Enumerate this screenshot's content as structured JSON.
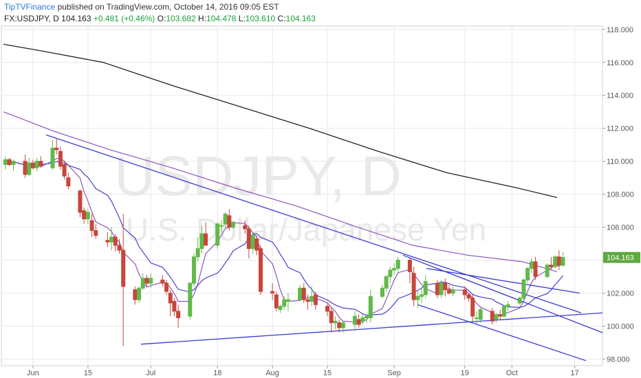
{
  "header": {
    "brand": "TipTVFinance",
    "published_text": " published on TradingView.com, October 14, 2016 09:05 EST"
  },
  "ohlc_bar": {
    "symbol": "FX:USDJPY, D",
    "last": "104.163",
    "change": "+0.481 (+0.46%)",
    "o_label": "O:",
    "o": "103.682",
    "h_label": "H:",
    "h": "104.478",
    "l_label": "L:",
    "l": "103.610",
    "c_label": "C:",
    "c": "104.163"
  },
  "watermark": {
    "line1": "USDJPY, D",
    "line2": "U.S. Dollar/Japanese Yen"
  },
  "colors": {
    "up": "#62b94a",
    "down": "#c7463c",
    "ma_long": "#222222",
    "ma_purple": "#8e55b8",
    "trendline": "#3a3ad4",
    "grid": "#e8e8e8",
    "badge": "#5fa83f"
  },
  "chart_data": {
    "type": "candlestick",
    "ylim": [
      97.6,
      118.2
    ],
    "y_ticks": [
      "98.000",
      "100.000",
      "102.000",
      "104.000",
      "106.000",
      "108.000",
      "110.000",
      "112.000",
      "114.000",
      "116.000",
      "118.000"
    ],
    "x_ticks": [
      "Jun",
      "15",
      "Jul",
      "18",
      "Aug",
      "15",
      "Sep",
      "19",
      "Oct",
      "17"
    ],
    "current_price": "104.163",
    "candles": [
      {
        "date": "2016-05-25",
        "o": 109.8,
        "h": 110.3,
        "l": 109.5,
        "c": 110.1
      },
      {
        "date": "2016-05-26",
        "o": 110.1,
        "h": 110.2,
        "l": 109.7,
        "c": 109.8
      },
      {
        "date": "2016-05-27",
        "o": 109.8,
        "h": 110.1,
        "l": 109.4,
        "c": 110.0
      },
      {
        "date": "2016-05-30",
        "o": 110.0,
        "h": 110.4,
        "l": 109.0,
        "c": 109.2
      },
      {
        "date": "2016-05-31",
        "o": 109.2,
        "h": 110.2,
        "l": 109.1,
        "c": 109.9
      },
      {
        "date": "2016-06-01",
        "o": 109.9,
        "h": 110.1,
        "l": 109.5,
        "c": 109.6
      },
      {
        "date": "2016-06-02",
        "o": 109.6,
        "h": 110.2,
        "l": 109.4,
        "c": 110.0
      },
      {
        "date": "2016-06-03",
        "o": 110.0,
        "h": 110.3,
        "l": 109.6,
        "c": 109.7
      },
      {
        "date": "2016-06-06",
        "o": 109.6,
        "h": 111.3,
        "l": 109.5,
        "c": 110.8
      },
      {
        "date": "2016-06-07",
        "o": 110.8,
        "h": 111.4,
        "l": 110.4,
        "c": 110.7
      },
      {
        "date": "2016-06-08",
        "o": 110.6,
        "h": 110.9,
        "l": 109.5,
        "c": 109.7
      },
      {
        "date": "2016-06-09",
        "o": 109.8,
        "h": 110.0,
        "l": 108.9,
        "c": 109.1
      },
      {
        "date": "2016-06-10",
        "o": 109.0,
        "h": 109.3,
        "l": 108.3,
        "c": 108.5
      },
      {
        "date": "2016-06-13",
        "o": 108.2,
        "h": 108.3,
        "l": 106.6,
        "c": 106.9
      },
      {
        "date": "2016-06-14",
        "o": 107.0,
        "h": 107.2,
        "l": 106.2,
        "c": 106.5
      },
      {
        "date": "2016-06-15",
        "o": 106.5,
        "h": 107.1,
        "l": 106.2,
        "c": 106.9
      },
      {
        "date": "2016-06-16",
        "o": 106.4,
        "h": 106.8,
        "l": 105.4,
        "c": 105.8
      },
      {
        "date": "2016-06-17",
        "o": 105.8,
        "h": 106.2,
        "l": 105.3,
        "c": 105.5
      },
      {
        "date": "2016-06-20",
        "o": 105.2,
        "h": 105.7,
        "l": 104.8,
        "c": 105.1
      },
      {
        "date": "2016-06-21",
        "o": 105.1,
        "h": 106.0,
        "l": 104.6,
        "c": 105.4
      },
      {
        "date": "2016-06-22",
        "o": 105.4,
        "h": 105.6,
        "l": 104.5,
        "c": 104.9
      },
      {
        "date": "2016-06-23",
        "o": 104.9,
        "h": 105.3,
        "l": 104.4,
        "c": 104.6
      },
      {
        "date": "2016-06-24",
        "o": 104.6,
        "h": 106.8,
        "l": 98.8,
        "c": 102.4
      },
      {
        "date": "2016-06-27",
        "o": 102.2,
        "h": 102.4,
        "l": 101.3,
        "c": 101.6
      },
      {
        "date": "2016-06-28",
        "o": 101.6,
        "h": 102.4,
        "l": 101.4,
        "c": 102.3
      },
      {
        "date": "2016-06-29",
        "o": 102.3,
        "h": 103.2,
        "l": 102.2,
        "c": 102.9
      },
      {
        "date": "2016-06-30",
        "o": 102.9,
        "h": 103.1,
        "l": 102.4,
        "c": 102.6
      },
      {
        "date": "2016-07-01",
        "o": 102.6,
        "h": 103.2,
        "l": 102.3,
        "c": 102.9
      },
      {
        "date": "2016-07-04",
        "o": 102.8,
        "h": 103.1,
        "l": 102.4,
        "c": 102.6
      },
      {
        "date": "2016-07-05",
        "o": 102.6,
        "h": 102.8,
        "l": 101.9,
        "c": 102.1
      },
      {
        "date": "2016-07-06",
        "o": 102.0,
        "h": 102.2,
        "l": 100.6,
        "c": 101.4
      },
      {
        "date": "2016-07-07",
        "o": 101.5,
        "h": 101.7,
        "l": 100.6,
        "c": 100.9
      },
      {
        "date": "2016-07-08",
        "o": 100.9,
        "h": 101.3,
        "l": 99.9,
        "c": 100.5
      },
      {
        "date": "2016-07-11",
        "o": 100.6,
        "h": 102.7,
        "l": 100.4,
        "c": 102.6
      },
      {
        "date": "2016-07-12",
        "o": 102.6,
        "h": 104.4,
        "l": 102.4,
        "c": 104.2
      },
      {
        "date": "2016-07-13",
        "o": 104.2,
        "h": 105.4,
        "l": 103.9,
        "c": 104.7
      },
      {
        "date": "2016-07-14",
        "o": 104.7,
        "h": 106.1,
        "l": 104.4,
        "c": 105.6
      },
      {
        "date": "2016-07-15",
        "o": 105.6,
        "h": 106.3,
        "l": 104.9,
        "c": 104.9
      },
      {
        "date": "2016-07-18",
        "o": 104.9,
        "h": 106.3,
        "l": 104.7,
        "c": 106.2
      },
      {
        "date": "2016-07-19",
        "o": 106.1,
        "h": 106.4,
        "l": 105.7,
        "c": 106.1
      },
      {
        "date": "2016-07-20",
        "o": 106.2,
        "h": 106.9,
        "l": 105.9,
        "c": 106.8
      },
      {
        "date": "2016-07-21",
        "o": 106.7,
        "h": 107.1,
        "l": 105.8,
        "c": 106.0
      },
      {
        "date": "2016-07-22",
        "o": 106.0,
        "h": 106.4,
        "l": 105.9,
        "c": 106.3
      },
      {
        "date": "2016-07-25",
        "o": 106.1,
        "h": 106.4,
        "l": 105.6,
        "c": 105.9
      },
      {
        "date": "2016-07-26",
        "o": 105.9,
        "h": 106.1,
        "l": 104.1,
        "c": 104.7
      },
      {
        "date": "2016-07-27",
        "o": 104.7,
        "h": 105.7,
        "l": 104.4,
        "c": 105.5
      },
      {
        "date": "2016-07-28",
        "o": 105.3,
        "h": 105.5,
        "l": 104.3,
        "c": 104.6
      },
      {
        "date": "2016-07-29",
        "o": 104.7,
        "h": 104.9,
        "l": 101.9,
        "c": 102.1
      },
      {
        "date": "2016-08-01",
        "o": 102.1,
        "h": 102.6,
        "l": 101.6,
        "c": 102.0
      },
      {
        "date": "2016-08-02",
        "o": 101.9,
        "h": 102.1,
        "l": 100.9,
        "c": 101.1
      },
      {
        "date": "2016-08-03",
        "o": 101.0,
        "h": 101.3,
        "l": 100.8,
        "c": 101.2
      },
      {
        "date": "2016-08-04",
        "o": 101.2,
        "h": 101.8,
        "l": 101.0,
        "c": 101.6
      },
      {
        "date": "2016-08-05",
        "o": 101.5,
        "h": 102.0,
        "l": 100.9,
        "c": 101.6
      },
      {
        "date": "2016-08-08",
        "o": 101.6,
        "h": 102.5,
        "l": 101.5,
        "c": 102.3
      },
      {
        "date": "2016-08-09",
        "o": 102.3,
        "h": 102.6,
        "l": 101.4,
        "c": 101.6
      },
      {
        "date": "2016-08-10",
        "o": 101.6,
        "h": 101.9,
        "l": 101.0,
        "c": 101.5
      },
      {
        "date": "2016-08-11",
        "o": 101.5,
        "h": 102.4,
        "l": 101.2,
        "c": 101.8
      },
      {
        "date": "2016-08-12",
        "o": 101.9,
        "h": 102.1,
        "l": 101.0,
        "c": 101.3
      },
      {
        "date": "2016-08-15",
        "o": 101.2,
        "h": 101.4,
        "l": 100.6,
        "c": 100.9
      },
      {
        "date": "2016-08-16",
        "o": 100.9,
        "h": 101.1,
        "l": 99.6,
        "c": 100.2
      },
      {
        "date": "2016-08-17",
        "o": 100.2,
        "h": 100.6,
        "l": 99.8,
        "c": 100.3
      },
      {
        "date": "2016-08-18",
        "o": 100.2,
        "h": 100.4,
        "l": 99.6,
        "c": 99.9
      },
      {
        "date": "2016-08-19",
        "o": 99.9,
        "h": 100.3,
        "l": 99.6,
        "c": 100.2
      },
      {
        "date": "2016-08-22",
        "o": 100.1,
        "h": 100.9,
        "l": 99.7,
        "c": 100.6
      },
      {
        "date": "2016-08-23",
        "o": 100.4,
        "h": 100.7,
        "l": 99.9,
        "c": 100.1
      },
      {
        "date": "2016-08-24",
        "o": 100.3,
        "h": 100.7,
        "l": 100.1,
        "c": 100.5
      },
      {
        "date": "2016-08-25",
        "o": 100.5,
        "h": 100.7,
        "l": 100.2,
        "c": 100.6
      },
      {
        "date": "2016-08-26",
        "o": 100.5,
        "h": 102.2,
        "l": 100.2,
        "c": 101.8
      },
      {
        "date": "2016-08-29",
        "o": 101.8,
        "h": 102.5,
        "l": 101.7,
        "c": 102.3
      },
      {
        "date": "2016-08-30",
        "o": 102.3,
        "h": 103.1,
        "l": 102.1,
        "c": 103.0
      },
      {
        "date": "2016-08-31",
        "o": 103.0,
        "h": 103.6,
        "l": 102.6,
        "c": 103.4
      },
      {
        "date": "2016-09-01",
        "o": 103.4,
        "h": 103.8,
        "l": 103.1,
        "c": 103.5
      },
      {
        "date": "2016-09-02",
        "o": 103.5,
        "h": 104.2,
        "l": 103.3,
        "c": 104.0
      },
      {
        "date": "2016-09-05",
        "o": 104.0,
        "h": 104.1,
        "l": 102.6,
        "c": 103.3
      },
      {
        "date": "2016-09-06",
        "o": 103.2,
        "h": 103.6,
        "l": 101.2,
        "c": 101.6
      },
      {
        "date": "2016-09-07",
        "o": 101.6,
        "h": 102.1,
        "l": 101.1,
        "c": 101.8
      },
      {
        "date": "2016-09-08",
        "o": 101.8,
        "h": 102.3,
        "l": 101.4,
        "c": 101.9
      },
      {
        "date": "2016-09-09",
        "o": 101.9,
        "h": 103.1,
        "l": 101.7,
        "c": 102.7
      },
      {
        "date": "2016-09-12",
        "o": 102.6,
        "h": 102.8,
        "l": 101.7,
        "c": 101.9
      },
      {
        "date": "2016-09-13",
        "o": 101.9,
        "h": 102.8,
        "l": 101.7,
        "c": 102.6
      },
      {
        "date": "2016-09-14",
        "o": 102.6,
        "h": 102.9,
        "l": 101.8,
        "c": 102.2
      },
      {
        "date": "2016-09-15",
        "o": 102.2,
        "h": 102.5,
        "l": 101.9,
        "c": 102.0
      },
      {
        "date": "2016-09-16",
        "o": 102.0,
        "h": 102.4,
        "l": 101.8,
        "c": 102.2
      },
      {
        "date": "2016-09-19",
        "o": 102.2,
        "h": 102.4,
        "l": 101.6,
        "c": 101.9
      },
      {
        "date": "2016-09-20",
        "o": 101.9,
        "h": 102.0,
        "l": 101.5,
        "c": 101.7
      },
      {
        "date": "2016-09-21",
        "o": 101.7,
        "h": 101.9,
        "l": 100.3,
        "c": 100.6
      },
      {
        "date": "2016-09-22",
        "o": 100.5,
        "h": 100.9,
        "l": 100.1,
        "c": 100.5
      },
      {
        "date": "2016-09-23",
        "o": 100.4,
        "h": 101.1,
        "l": 100.2,
        "c": 101.0
      },
      {
        "date": "2016-09-26",
        "o": 100.9,
        "h": 101.1,
        "l": 100.1,
        "c": 100.3
      },
      {
        "date": "2016-09-27",
        "o": 100.4,
        "h": 100.8,
        "l": 100.2,
        "c": 100.7
      },
      {
        "date": "2016-09-28",
        "o": 100.7,
        "h": 101.0,
        "l": 100.4,
        "c": 100.6
      },
      {
        "date": "2016-09-29",
        "o": 100.6,
        "h": 101.3,
        "l": 100.5,
        "c": 101.2
      },
      {
        "date": "2016-09-30",
        "o": 101.2,
        "h": 101.5,
        "l": 100.9,
        "c": 101.3
      },
      {
        "date": "2016-10-03",
        "o": 101.4,
        "h": 101.8,
        "l": 101.3,
        "c": 101.7
      },
      {
        "date": "2016-10-04",
        "o": 101.7,
        "h": 102.9,
        "l": 101.6,
        "c": 102.8
      },
      {
        "date": "2016-10-05",
        "o": 102.8,
        "h": 103.6,
        "l": 102.6,
        "c": 103.5
      },
      {
        "date": "2016-10-06",
        "o": 103.5,
        "h": 104.1,
        "l": 103.2,
        "c": 103.9
      },
      {
        "date": "2016-10-07",
        "o": 103.9,
        "h": 104.2,
        "l": 102.8,
        "c": 103.0
      },
      {
        "date": "2016-10-10",
        "o": 103.0,
        "h": 103.8,
        "l": 102.9,
        "c": 103.7
      },
      {
        "date": "2016-10-11",
        "o": 103.7,
        "h": 104.2,
        "l": 103.4,
        "c": 103.6
      },
      {
        "date": "2016-10-12",
        "o": 103.6,
        "h": 104.3,
        "l": 103.5,
        "c": 104.2
      },
      {
        "date": "2016-10-13",
        "o": 104.2,
        "h": 104.6,
        "l": 103.4,
        "c": 103.7
      },
      {
        "date": "2016-10-14",
        "o": 103.682,
        "h": 104.478,
        "l": 103.61,
        "c": 104.163
      }
    ]
  }
}
